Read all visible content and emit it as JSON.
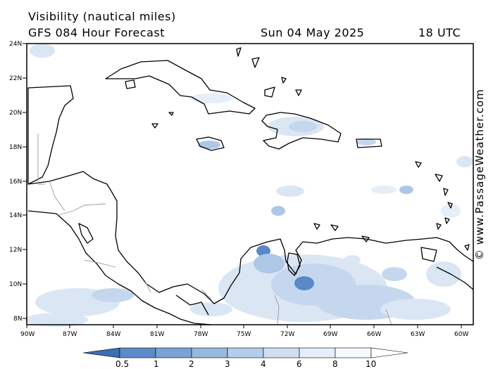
{
  "header": {
    "title": "Visibility (nautical miles)",
    "subtitle": "GFS 084 Hour Forecast",
    "date": "Sun 04 May 2025",
    "time": "18 UTC"
  },
  "credit": "© www.PassageWeather.com",
  "axes": {
    "lat_labels": [
      "24N",
      "22N",
      "20N",
      "18N",
      "16N",
      "14N",
      "12N",
      "10N",
      "8N"
    ],
    "lon_labels": [
      "90W",
      "87W",
      "84W",
      "81W",
      "78W",
      "75W",
      "72W",
      "69W",
      "66W",
      "63W",
      "60W"
    ]
  },
  "legend": {
    "labels": [
      "0.5",
      "1",
      "2",
      "3",
      "4",
      "6",
      "8",
      "10"
    ],
    "colors": [
      "#3a6eb5",
      "#5b8cc8",
      "#7aa3d4",
      "#97b8df",
      "#b5cde9",
      "#d0def1",
      "#e6eef8",
      "#f6f9fd",
      "#ffffff"
    ]
  },
  "colors": {
    "land_outline": "#000000",
    "border": "#999999",
    "haze_light": "#dbe6f4",
    "haze_mid": "#aec7e6",
    "haze_dark": "#5b88c6"
  }
}
